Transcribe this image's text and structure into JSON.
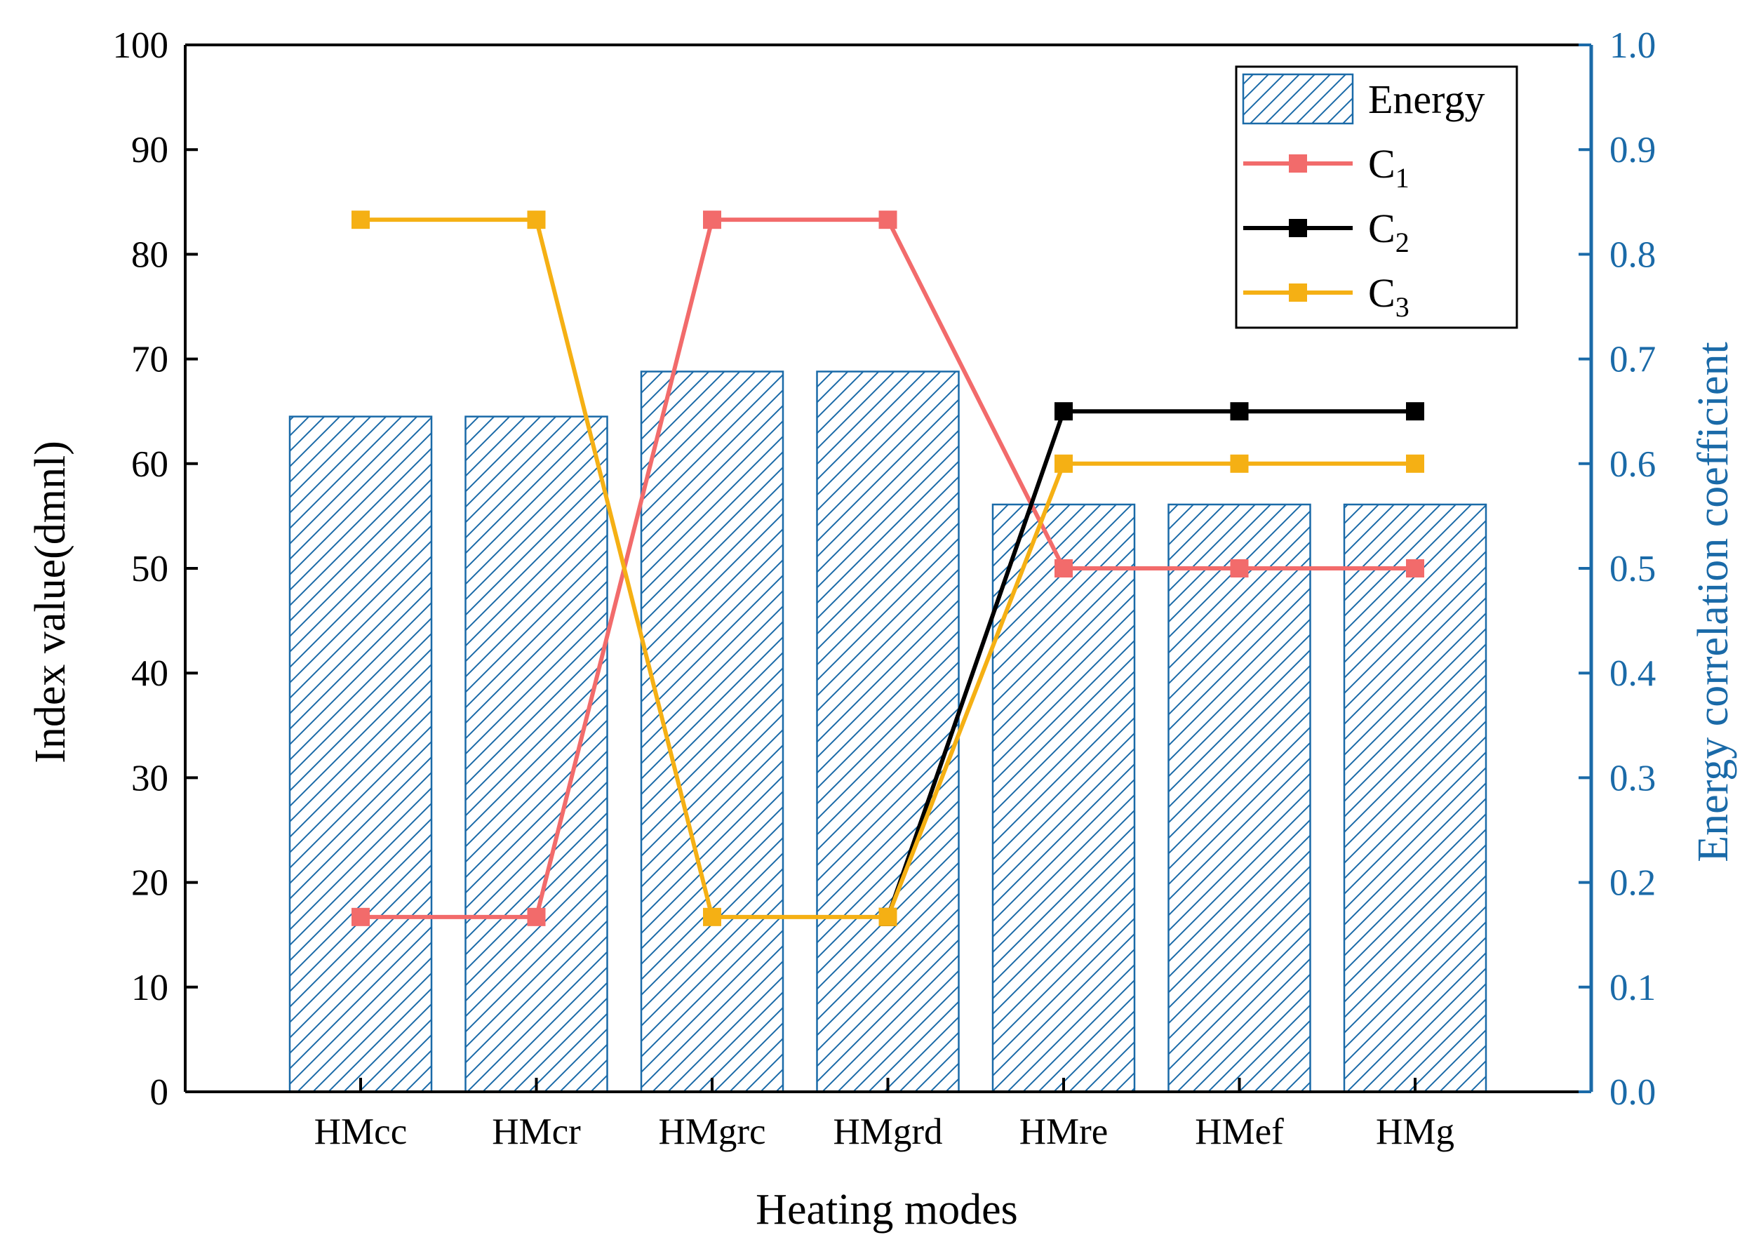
{
  "chart_data": {
    "type": "bar",
    "title": "",
    "xlabel": "Heating modes",
    "ylabel": "Index value(dmnl)",
    "y2label": "Energy correlation coefficient",
    "categories": [
      "HMcc",
      "HMcr",
      "HMgrc",
      "HMgrd",
      "HMre",
      "HMef",
      "HMg"
    ],
    "ylim": [
      0,
      100
    ],
    "y2lim": [
      0.0,
      1.0
    ],
    "yticks": [
      "0",
      "10",
      "20",
      "30",
      "40",
      "50",
      "60",
      "70",
      "80",
      "90",
      "100"
    ],
    "y2ticks": [
      "0.0",
      "0.1",
      "0.2",
      "0.3",
      "0.4",
      "0.5",
      "0.6",
      "0.7",
      "0.8",
      "0.9",
      "1.0"
    ],
    "legend_position": "top-right",
    "series": [
      {
        "name": "Energy",
        "kind": "bar",
        "axis": "left",
        "color": "#1a6aa8",
        "values": [
          64.5,
          64.5,
          68.8,
          68.8,
          56.1,
          56.1,
          56.1
        ]
      },
      {
        "name": "C",
        "sub": "1",
        "kind": "line",
        "axis": "left",
        "color": "#f26b6b",
        "values": [
          16.7,
          16.7,
          83.3,
          83.3,
          50.0,
          50.0,
          50.0
        ]
      },
      {
        "name": "C",
        "sub": "2",
        "kind": "line",
        "axis": "left",
        "color": "#000000",
        "values": [
          null,
          null,
          null,
          16.7,
          65.0,
          65.0,
          65.0
        ]
      },
      {
        "name": "C",
        "sub": "3",
        "kind": "line",
        "axis": "left",
        "color": "#f5b014",
        "values": [
          83.3,
          83.3,
          16.7,
          16.7,
          60.0,
          60.0,
          60.0
        ]
      }
    ]
  }
}
